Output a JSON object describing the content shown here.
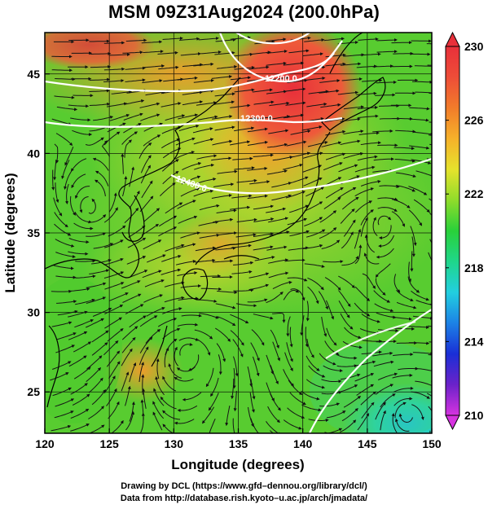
{
  "title": "MSM 09Z31Aug2024 (200.0hPa)",
  "map": {
    "xlabel": "Longitude (degrees)",
    "ylabel": "Latitude  (degrees)",
    "lon_range": [
      120,
      150
    ],
    "lat_range": [
      22.4,
      47.6
    ],
    "lon_ticks": [
      "120",
      "125",
      "130",
      "135",
      "140",
      "145",
      "150"
    ],
    "lat_ticks": [
      "25",
      "30",
      "35",
      "40",
      "45"
    ],
    "field": "temperature (shaded) with streamlines and geopotential height contours",
    "contour_labels": [
      "12200.0",
      "12300.0",
      "12400.0"
    ],
    "colors": {
      "hot": "#e8392c",
      "orange": "#f4a22a",
      "yellow": "#e7df2c",
      "green": "#4fc92e",
      "cyan": "#24c8dc",
      "contour": "#ffffff",
      "streamline": "#1a1a1a",
      "coast": "#000000"
    }
  },
  "colorbar": {
    "labels": [
      "230",
      "226",
      "222",
      "218",
      "214",
      "210"
    ],
    "range": [
      210,
      230
    ],
    "stops": [
      "#d633e0",
      "#6b22c9",
      "#1a2fd6",
      "#1c82e6",
      "#22cfe0",
      "#1fd68a",
      "#29d13a",
      "#8fdc2b",
      "#e6e22c",
      "#f6b12a",
      "#f27c2a",
      "#ee4d38",
      "#e8303a"
    ]
  },
  "credits": {
    "line1": "Drawing by DCL (https://www.gfd–dennou.org/library/dcl/)",
    "line2": "Data from http://database.rish.kyoto–u.ac.jp/arch/jmadata/"
  }
}
